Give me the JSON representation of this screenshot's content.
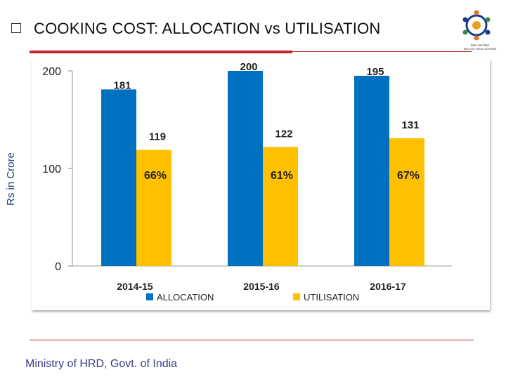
{
  "slide": {
    "title": "COOKING COST: ALLOCATION vs UTILISATION",
    "footer": "Ministry of HRD, Govt. of India",
    "logo_caption": "स्वच्छ भारत मिशन\nMID DAY MEAL SCHEME"
  },
  "colors": {
    "allocation": "#0070c0",
    "utilisation": "#ffc000",
    "accent_red": "#c0262d"
  },
  "chart_data": {
    "type": "bar",
    "title": "COOKING COST: ALLOCATION vs UTILISATION",
    "xlabel": "",
    "ylabel": "Rs in Crore",
    "ylim": [
      0,
      200
    ],
    "yticks": [
      0,
      100,
      200
    ],
    "categories": [
      "2014-15",
      "2015-16",
      "2016-17"
    ],
    "series": [
      {
        "name": "ALLOCATION",
        "values": [
          181,
          200,
          195
        ],
        "labels": [
          "181",
          "200",
          "195"
        ]
      },
      {
        "name": "UTILISATION",
        "values": [
          119,
          122,
          131
        ],
        "labels": [
          "119",
          "122",
          "131"
        ]
      }
    ],
    "annotations": [
      "66%",
      "61%",
      "67%"
    ],
    "legend": "bottom",
    "grid": false
  }
}
